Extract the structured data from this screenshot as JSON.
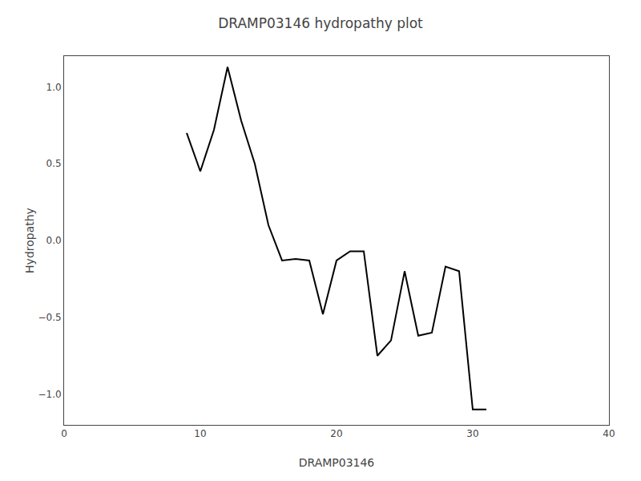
{
  "chart_data": {
    "type": "line",
    "title": "DRAMP03146 hydropathy plot",
    "xlabel": "DRAMP03146",
    "ylabel": "Hydropathy",
    "x": [
      9,
      10,
      11,
      12,
      13,
      14,
      15,
      16,
      17,
      18,
      19,
      20,
      21,
      22,
      23,
      24,
      25,
      26,
      27,
      28,
      29,
      30,
      31
    ],
    "values": [
      0.7,
      0.45,
      0.72,
      1.13,
      0.78,
      0.5,
      0.1,
      -0.13,
      -0.12,
      -0.13,
      -0.48,
      -0.13,
      -0.07,
      -0.07,
      -0.75,
      -0.65,
      -0.2,
      -0.62,
      -0.6,
      -0.17,
      -0.2,
      -1.1,
      -1.1
    ],
    "color": "#000000",
    "xlim": [
      0,
      40
    ],
    "ylim": [
      -1.2,
      1.2
    ],
    "xticks": [
      0,
      10,
      20,
      30,
      40
    ],
    "yticks": [
      {
        "value": -1.0,
        "label": "−1.0"
      },
      {
        "value": -0.5,
        "label": "−0.5"
      },
      {
        "value": 0.0,
        "label": "0.0"
      },
      {
        "value": 0.5,
        "label": "0.5"
      },
      {
        "value": 1.0,
        "label": "1.0"
      }
    ],
    "grid": false
  }
}
